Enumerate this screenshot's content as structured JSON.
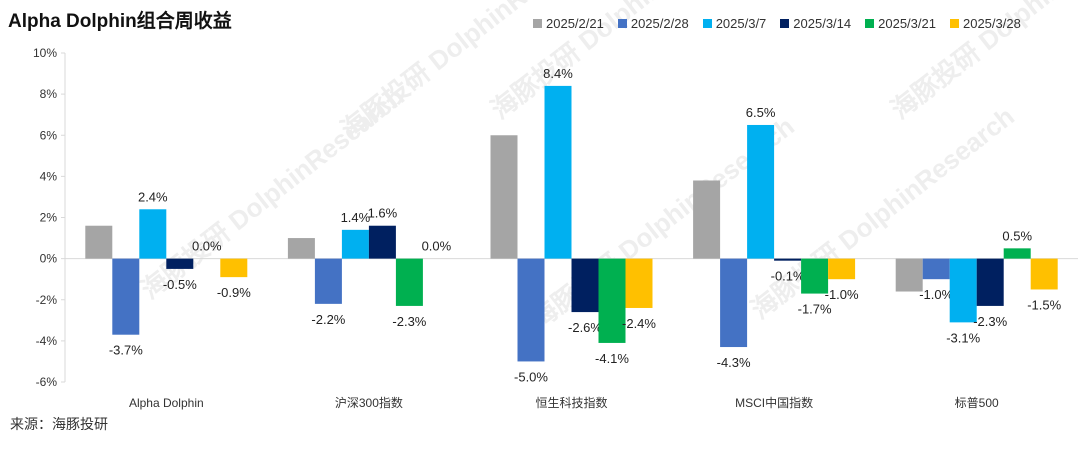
{
  "chart_data": {
    "type": "bar",
    "title": "Alpha Dolphin组合周收益",
    "source": "来源：海豚投研",
    "watermark": "海豚投研 DolphinResearch",
    "categories": [
      "Alpha Dolphin",
      "沪深300指数",
      "恒生科技指数",
      "MSCI中国指数",
      "标普500"
    ],
    "series": [
      {
        "name": "2025/2/21",
        "color": "#A5A5A5",
        "values": [
          1.6,
          1.0,
          6.0,
          3.8,
          -1.6
        ],
        "labels": false
      },
      {
        "name": "2025/2/28",
        "color": "#4472C4",
        "values": [
          -3.7,
          -2.2,
          -5.0,
          -4.3,
          -1.0
        ],
        "labels": true
      },
      {
        "name": "2025/3/7",
        "color": "#00B0F0",
        "values": [
          2.4,
          1.4,
          8.4,
          6.5,
          -3.1
        ],
        "labels": true
      },
      {
        "name": "2025/3/14",
        "color": "#002060",
        "values": [
          -0.5,
          1.6,
          -2.6,
          -0.1,
          -2.3
        ],
        "labels": true
      },
      {
        "name": "2025/3/21",
        "color": "#00B050",
        "values": [
          0.0,
          -2.3,
          -4.1,
          -1.7,
          0.5
        ],
        "labels": true
      },
      {
        "name": "2025/3/28",
        "color": "#FFC000",
        "values": [
          -0.9,
          0.0,
          -2.4,
          -1.0,
          -1.5
        ],
        "labels": true
      }
    ],
    "yticks": [
      "10%",
      "8%",
      "6%",
      "4%",
      "2%",
      "0%",
      "-2%",
      "-4%",
      "-6%"
    ],
    "ylim": [
      -6,
      10
    ],
    "legend": "top-right"
  }
}
